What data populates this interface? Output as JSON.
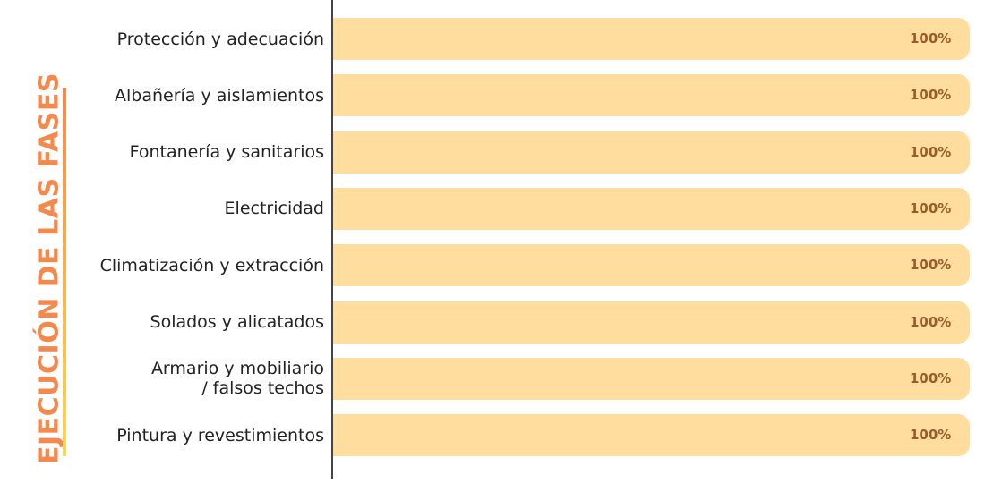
{
  "chart_data": {
    "type": "bar",
    "orientation": "horizontal",
    "title": "EJECUCIÓN DE LAS FASES",
    "categories": [
      "Protección y adecuación",
      "Albañería y aislamientos",
      "Fontanería y sanitarios",
      "Electricidad",
      "Climatización y extracción",
      "Solados y alicatados",
      "Armario y mobiliario\n/ falsos techos",
      "Pintura y revestimientos"
    ],
    "values": [
      100,
      100,
      100,
      100,
      100,
      100,
      100,
      100
    ],
    "value_labels": [
      "100%",
      "100%",
      "100%",
      "100%",
      "100%",
      "100%",
      "100%",
      "100%"
    ],
    "color": "#fedd9f",
    "xlim": [
      0,
      100
    ]
  }
}
